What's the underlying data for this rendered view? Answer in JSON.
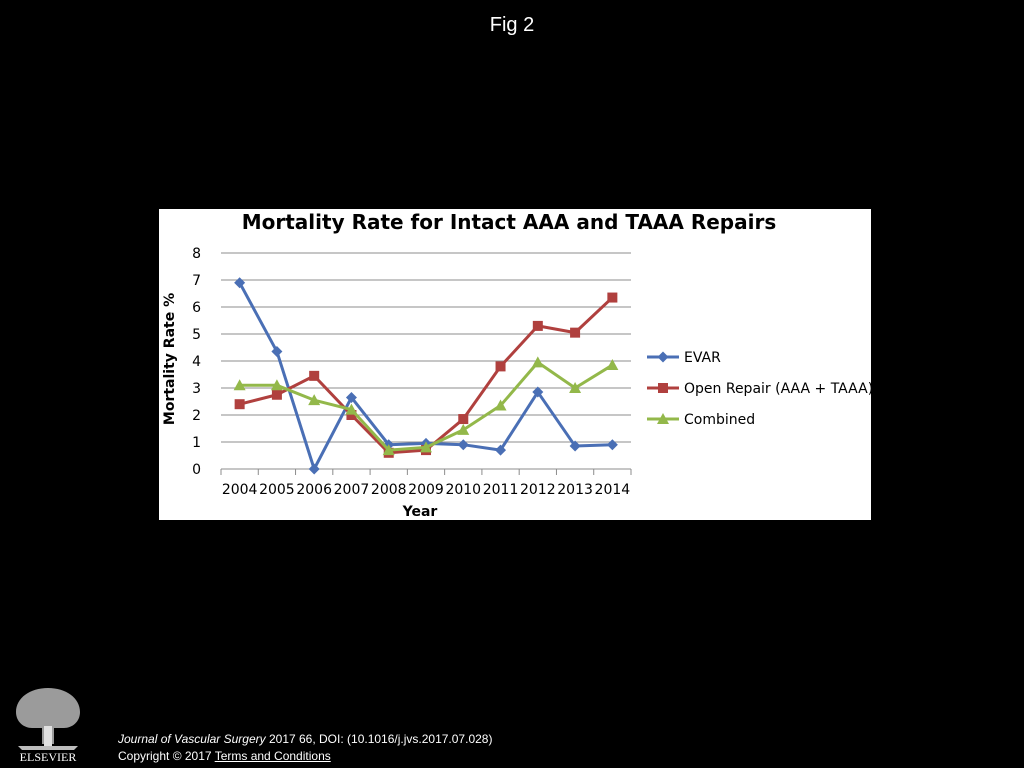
{
  "figure": {
    "label": "Fig 2"
  },
  "chart_data": {
    "type": "line",
    "title": "Mortality Rate for Intact AAA and TAAA Repairs",
    "xlabel": "Year",
    "ylabel": "Mortality Rate %",
    "categories": [
      "2004",
      "2005",
      "2006",
      "2007",
      "2008",
      "2009",
      "2010",
      "2011",
      "2012",
      "2013",
      "2014"
    ],
    "ylim": [
      0,
      8
    ],
    "yticks": [
      0,
      1,
      2,
      3,
      4,
      5,
      6,
      7,
      8
    ],
    "grid": true,
    "legend_position": "right",
    "series": [
      {
        "name": "EVAR",
        "color": "#4a6fb5",
        "marker": "diamond",
        "values": [
          6.9,
          4.35,
          0.0,
          2.65,
          0.9,
          0.95,
          0.9,
          0.7,
          2.85,
          0.85,
          0.9
        ]
      },
      {
        "name": "Open Repair (AAA + TAAA)",
        "color": "#b0403e",
        "marker": "square",
        "values": [
          2.4,
          2.75,
          3.45,
          2.0,
          0.6,
          0.7,
          1.85,
          3.8,
          5.3,
          5.05,
          6.35
        ]
      },
      {
        "name": "Combined",
        "color": "#93b84a",
        "marker": "triangle",
        "values": [
          3.1,
          3.1,
          2.55,
          2.2,
          0.7,
          0.8,
          1.45,
          2.35,
          3.95,
          3.0,
          3.85
        ]
      }
    ]
  },
  "footer": {
    "journal": "Journal of Vascular Surgery",
    "citation": " 2017 66, DOI: (10.1016/j.jvs.2017.07.028)",
    "copyright": "Copyright © 2017 ",
    "terms_link": " Terms and Conditions",
    "publisher": "ELSEVIER"
  }
}
